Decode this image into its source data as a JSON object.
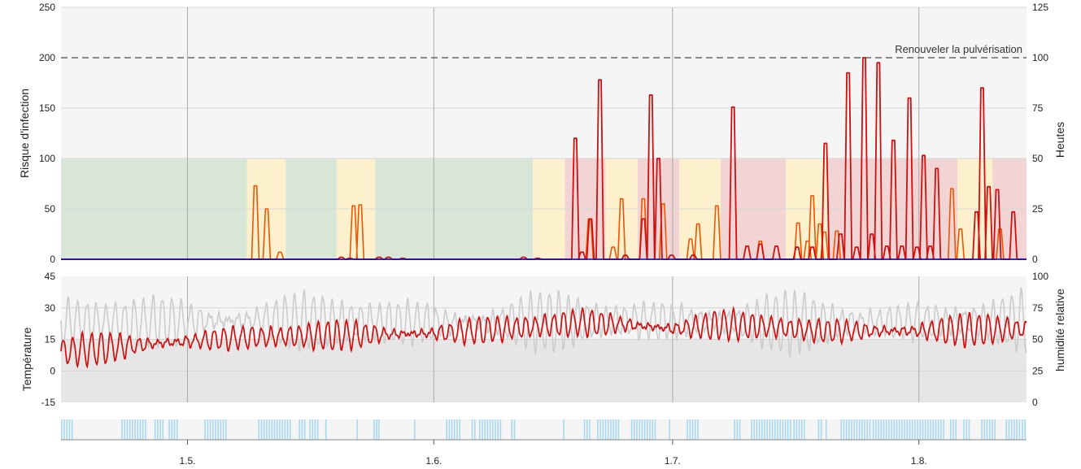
{
  "chart_data": [
    {
      "type": "line",
      "id": "infection",
      "ylabel": "Risque d'infection",
      "y2label": "Heutes",
      "ylim": [
        0,
        250
      ],
      "y2lim": [
        0,
        125
      ],
      "yticks": [
        "0",
        "50",
        "100",
        "150",
        "200",
        "250"
      ],
      "y2ticks": [
        "0",
        "25",
        "50",
        "75",
        "100",
        "125"
      ],
      "threshold": {
        "value": 200,
        "label": "Renouveler la pulvérisation",
        "style": "dashed"
      },
      "grid": true,
      "zones": [
        {
          "from": 0.0,
          "to": 19.7,
          "level": "low"
        },
        {
          "from": 19.7,
          "to": 23.8,
          "level": "medium"
        },
        {
          "from": 23.8,
          "to": 29.2,
          "level": "low"
        },
        {
          "from": 29.2,
          "to": 33.3,
          "level": "medium"
        },
        {
          "from": 33.3,
          "to": 50.0,
          "level": "low"
        },
        {
          "from": 50.0,
          "to": 53.4,
          "level": "medium"
        },
        {
          "from": 53.4,
          "to": 57.7,
          "level": "high"
        },
        {
          "from": 57.7,
          "to": 61.1,
          "level": "medium"
        },
        {
          "from": 61.1,
          "to": 65.5,
          "level": "high"
        },
        {
          "from": 65.5,
          "to": 69.9,
          "level": "medium"
        },
        {
          "from": 69.9,
          "to": 76.8,
          "level": "high"
        },
        {
          "from": 76.8,
          "to": 81.2,
          "level": "medium"
        },
        {
          "from": 81.2,
          "to": 95.0,
          "level": "high"
        },
        {
          "from": 95.0,
          "to": 98.7,
          "level": "medium"
        },
        {
          "from": 98.7,
          "to": 102.3,
          "level": "high"
        }
      ],
      "series": [
        {
          "id": "risk_main",
          "color": "#cc1111",
          "peaks": [
            [
              29.7,
              2
            ],
            [
              30.6,
              1
            ],
            [
              33.7,
              2
            ],
            [
              34.7,
              2
            ],
            [
              36.2,
              1
            ],
            [
              49.0,
              2
            ],
            [
              50.5,
              1
            ],
            [
              54.5,
              120
            ],
            [
              55.2,
              7
            ],
            [
              56.1,
              40
            ],
            [
              57.1,
              178
            ],
            [
              59.8,
              4
            ],
            [
              61.7,
              40
            ],
            [
              62.5,
              163
            ],
            [
              63.3,
              100
            ],
            [
              64.7,
              4
            ],
            [
              67.0,
              4
            ],
            [
              71.2,
              151
            ],
            [
              72.7,
              13
            ],
            [
              74.1,
              15
            ],
            [
              75.8,
              13
            ],
            [
              78.0,
              12
            ],
            [
              79.6,
              12
            ],
            [
              81.0,
              115
            ],
            [
              82.6,
              25
            ],
            [
              83.4,
              185
            ],
            [
              84.3,
              12
            ],
            [
              85.1,
              200
            ],
            [
              85.9,
              25
            ],
            [
              86.6,
              195
            ],
            [
              87.5,
              13
            ],
            [
              88.2,
              118
            ],
            [
              89.1,
              13
            ],
            [
              89.9,
              160
            ],
            [
              90.7,
              12
            ],
            [
              91.4,
              103
            ],
            [
              92.1,
              13
            ],
            [
              92.8,
              90
            ],
            [
              97.0,
              47
            ],
            [
              97.6,
              170
            ],
            [
              98.3,
              72
            ],
            [
              99.2,
              69
            ],
            [
              100.9,
              47
            ]
          ]
        },
        {
          "id": "risk_secondary",
          "color": "#ee5500",
          "peaks": [
            [
              20.6,
              73
            ],
            [
              21.8,
              50
            ],
            [
              23.2,
              7
            ],
            [
              31.0,
              53
            ],
            [
              31.7,
              54
            ],
            [
              56.0,
              40
            ],
            [
              58.5,
              12
            ],
            [
              59.4,
              60
            ],
            [
              61.7,
              60
            ],
            [
              63.8,
              55
            ],
            [
              66.7,
              20
            ],
            [
              67.5,
              35
            ],
            [
              69.5,
              53
            ],
            [
              74.1,
              18
            ],
            [
              78.1,
              36
            ],
            [
              79.1,
              18
            ],
            [
              79.6,
              63
            ],
            [
              80.4,
              35
            ],
            [
              80.9,
              27
            ],
            [
              82.2,
              28
            ],
            [
              94.4,
              70
            ],
            [
              95.3,
              30
            ],
            [
              99.5,
              30
            ]
          ]
        },
        {
          "id": "risk_base",
          "color": "#0000dd",
          "values": [
            0,
            0
          ]
        }
      ]
    },
    {
      "type": "line",
      "id": "weather",
      "ylabel": "Température",
      "y2label": "humidité relative",
      "ylim": [
        -15,
        45
      ],
      "y2lim": [
        0,
        100
      ],
      "yticks": [
        "-15",
        "0",
        "15",
        "30",
        "45"
      ],
      "y2ticks": [
        "0",
        "25",
        "50",
        "75",
        "100"
      ],
      "grid": true,
      "series": [
        {
          "id": "temperature",
          "color": "#cc1111",
          "axis": "left",
          "base": [
            [
              0,
              9
            ],
            [
              10,
              13
            ],
            [
              20,
              16
            ],
            [
              30,
              17
            ],
            [
              40,
              18
            ],
            [
              50,
              21
            ],
            [
              55,
              23
            ],
            [
              60,
              22
            ],
            [
              65,
              20
            ],
            [
              70,
              22
            ],
            [
              75,
              21
            ],
            [
              80,
              19
            ],
            [
              90,
              19
            ],
            [
              102.3,
              20
            ]
          ],
          "amplitude": 8
        },
        {
          "id": "relative_humidity",
          "color": "#cccccc",
          "axis": "right",
          "base": [
            [
              0,
              63
            ],
            [
              20,
              65
            ],
            [
              40,
              63
            ],
            [
              60,
              65
            ],
            [
              80,
              63
            ],
            [
              102.3,
              65
            ]
          ],
          "amplitude": 25
        }
      ]
    },
    {
      "type": "bar",
      "id": "rain_events",
      "color": "#a8d8f0",
      "intervals": [
        [
          0.0,
          1.2
        ],
        [
          6.4,
          9.0
        ],
        [
          9.9,
          10.8
        ],
        [
          11.4,
          12.4
        ],
        [
          15.2,
          17.6
        ],
        [
          20.9,
          24.3
        ],
        [
          25.2,
          25.8
        ],
        [
          26.3,
          27.3
        ],
        [
          28.0,
          28.2
        ],
        [
          31.3,
          31.5
        ],
        [
          33.1,
          33.4
        ],
        [
          33.6,
          33.8
        ],
        [
          37.4,
          37.6
        ],
        [
          40.8,
          42.4
        ],
        [
          43.5,
          43.8
        ],
        [
          44.3,
          46.6
        ],
        [
          47.7,
          48.0
        ],
        [
          53.2,
          53.4
        ],
        [
          55.4,
          56.0
        ],
        [
          56.8,
          58.9
        ],
        [
          59.0,
          59.2
        ],
        [
          60.4,
          62.9
        ],
        [
          64.4,
          64.6
        ],
        [
          66.3,
          67.5
        ],
        [
          71.3,
          72.1
        ],
        [
          73.1,
          77.3
        ],
        [
          77.6,
          78.9
        ],
        [
          80.2,
          80.7
        ],
        [
          81.0,
          81.2
        ],
        [
          82.6,
          85.8
        ],
        [
          86.0,
          93.5
        ],
        [
          94.2,
          94.9
        ],
        [
          95.6,
          96.3
        ],
        [
          97.5,
          99.1
        ],
        [
          100.1,
          101.7
        ],
        [
          101.8,
          102.3
        ]
      ]
    }
  ],
  "x_axis": {
    "domain": [
      0,
      102.3
    ],
    "ticks": [
      {
        "value": 13.4,
        "label": "1.5."
      },
      {
        "value": 39.5,
        "label": "1.6."
      },
      {
        "value": 64.8,
        "label": "1.7."
      },
      {
        "value": 90.9,
        "label": "1.8."
      }
    ]
  },
  "colors": {
    "plot_bg": "#f5f5f5",
    "temp_bg": "#e6e6e6",
    "grid": "#d8d8d8",
    "vgrid": "#aaaaaa",
    "zone_low": "#d8e6d8",
    "zone_medium": "#fdf0cc",
    "zone_high": "#f2d4d4",
    "threshold": "#666666"
  }
}
